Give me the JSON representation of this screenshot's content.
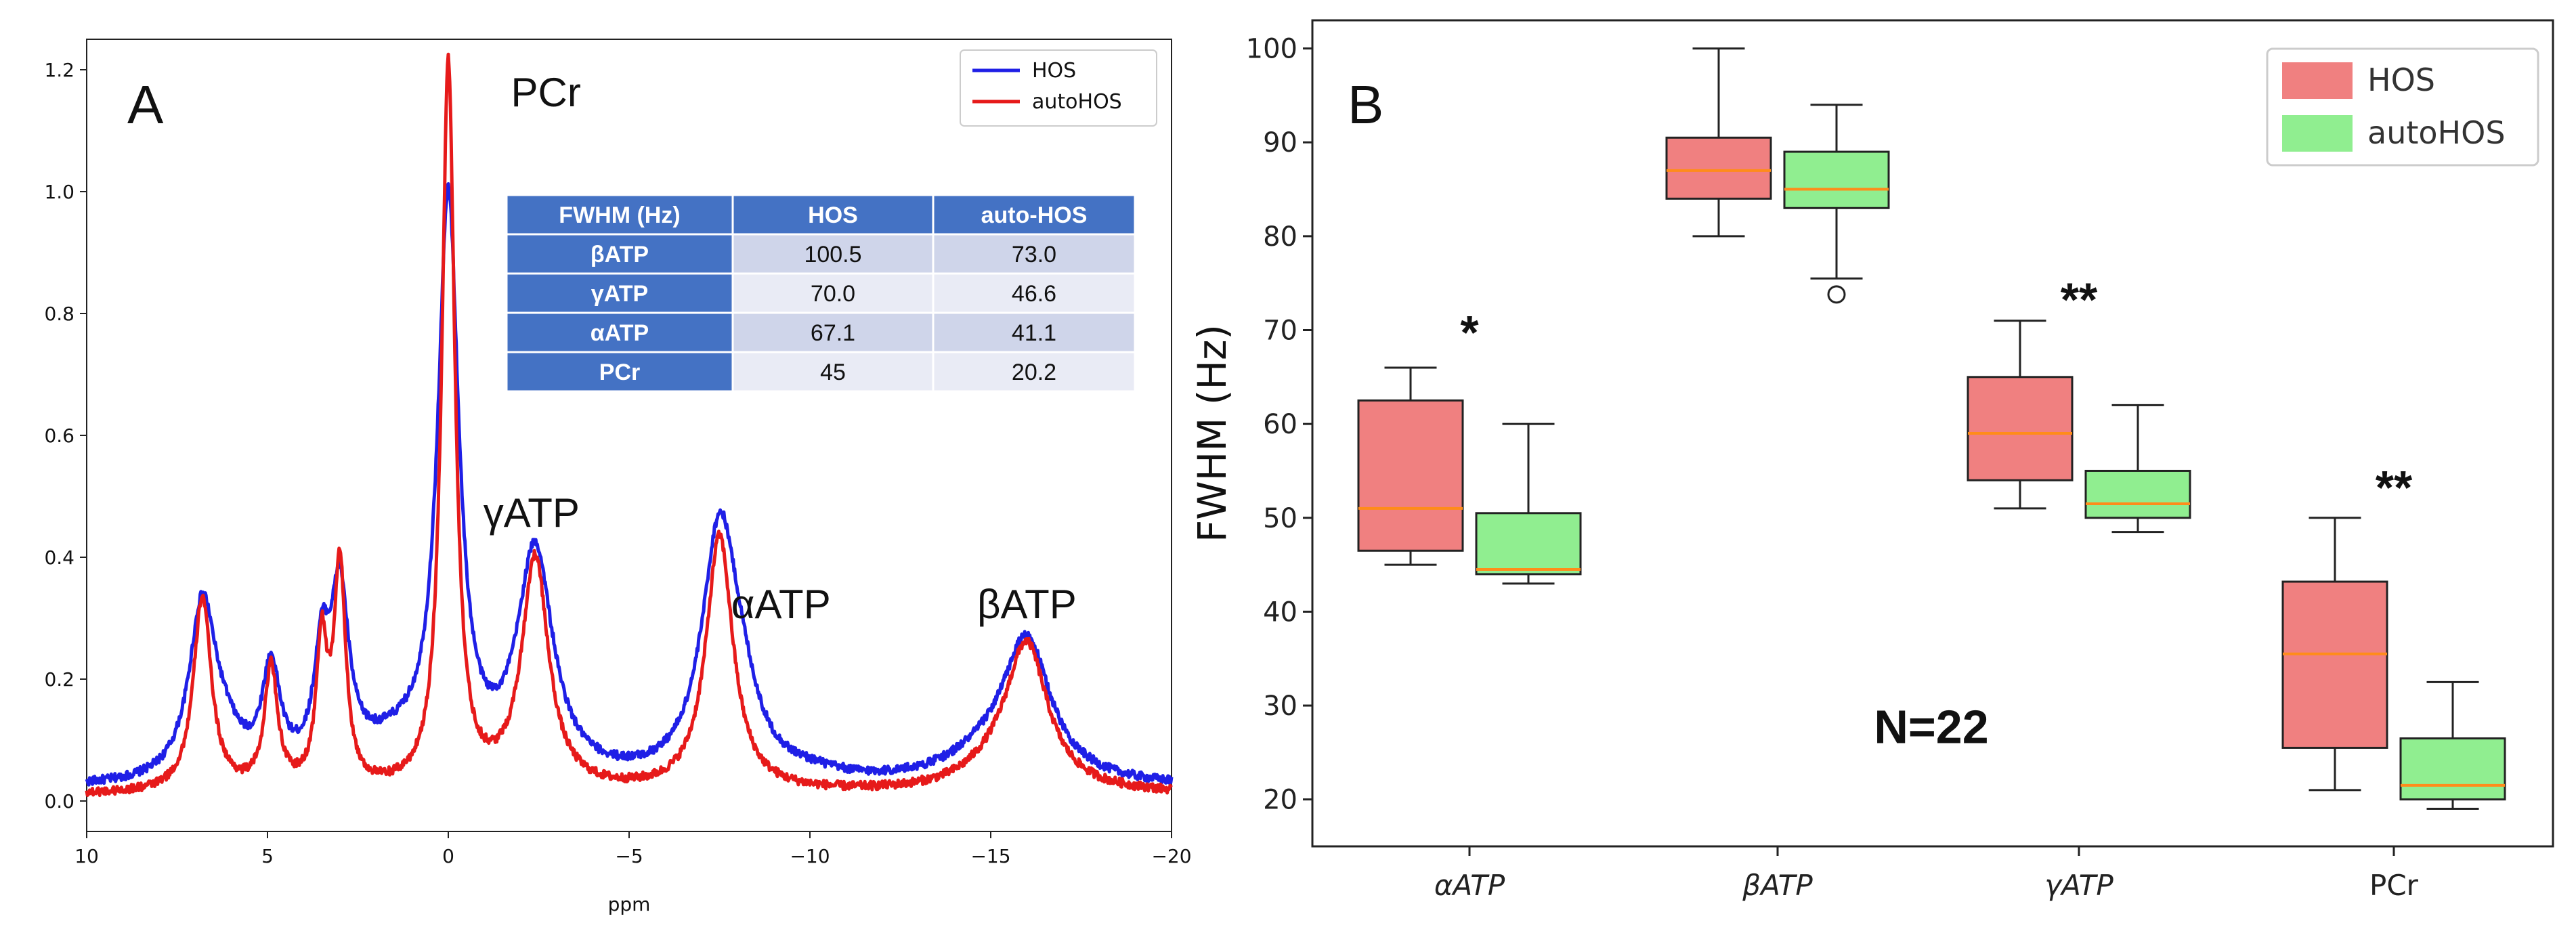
{
  "chart_data": [
    {
      "type": "line",
      "panel": "A",
      "xlabel": "ppm",
      "ylabel": "",
      "xlim": [
        10,
        -20
      ],
      "ylim": [
        -0.05,
        1.25
      ],
      "x_ticks": [
        10,
        5,
        0,
        -5,
        -10,
        -15,
        -20
      ],
      "x_tick_labels": [
        "10",
        "5",
        "0",
        "−5",
        "−10",
        "−15",
        "−20"
      ],
      "y_ticks": [
        0.0,
        0.2,
        0.4,
        0.6,
        0.8,
        1.0,
        1.2
      ],
      "y_tick_labels": [
        "0.0",
        "0.2",
        "0.4",
        "0.6",
        "0.8",
        "1.0",
        "1.2"
      ],
      "legend": {
        "position": "top-right",
        "entries": [
          "HOS",
          "autoHOS"
        ]
      },
      "series": [
        {
          "name": "HOS",
          "color": "#1f1fe6",
          "baseline": 0.02,
          "peaks": [
            {
              "ppm": 6.8,
              "height": 0.28,
              "width": 0.45
            },
            {
              "ppm": 6.2,
              "height": 0.05,
              "width": 0.6
            },
            {
              "ppm": 4.9,
              "height": 0.17,
              "width": 0.3
            },
            {
              "ppm": 3.5,
              "height": 0.17,
              "width": 0.25
            },
            {
              "ppm": 3.0,
              "height": 0.28,
              "width": 0.3
            },
            {
              "ppm": 1.5,
              "height": 0.05,
              "width": 1.5
            },
            {
              "ppm": 0.0,
              "height": 0.93,
              "width": 0.35
            },
            {
              "ppm": -2.4,
              "height": 0.37,
              "width": 0.6
            },
            {
              "ppm": -7.5,
              "height": 0.4,
              "width": 0.6
            },
            {
              "ppm": -8.1,
              "height": 0.08,
              "width": 0.6
            },
            {
              "ppm": -10.0,
              "height": 0.01,
              "width": 1.0
            },
            {
              "ppm": -16.0,
              "height": 0.22,
              "width": 0.8
            },
            {
              "ppm": -15.0,
              "height": 0.04,
              "width": 1.5
            }
          ]
        },
        {
          "name": "autoHOS",
          "color": "#e61a1a",
          "baseline": 0.01,
          "peaks": [
            {
              "ppm": 6.8,
              "height": 0.32,
              "width": 0.3
            },
            {
              "ppm": 4.9,
              "height": 0.2,
              "width": 0.22
            },
            {
              "ppm": 3.5,
              "height": 0.23,
              "width": 0.18
            },
            {
              "ppm": 3.0,
              "height": 0.36,
              "width": 0.2
            },
            {
              "ppm": 0.0,
              "height": 1.19,
              "width": 0.22
            },
            {
              "ppm": -2.4,
              "height": 0.38,
              "width": 0.45
            },
            {
              "ppm": -7.5,
              "height": 0.42,
              "width": 0.45
            },
            {
              "ppm": -16.0,
              "height": 0.23,
              "width": 0.7
            },
            {
              "ppm": -15.2,
              "height": 0.03,
              "width": 1.2
            }
          ]
        }
      ],
      "annotations": [
        {
          "text": "PCr",
          "ppm": -2.7,
          "y": 1.14
        },
        {
          "text": "γATP",
          "ppm": -2.3,
          "y": 0.45
        },
        {
          "text": "αATP",
          "ppm": -9.2,
          "y": 0.3
        },
        {
          "text": "βATP",
          "ppm": -16.0,
          "y": 0.3
        }
      ],
      "table": {
        "headers": [
          "FWHM (Hz)",
          "HOS",
          "auto-HOS"
        ],
        "rows": [
          [
            "βATP",
            "100.5",
            "73.0"
          ],
          [
            "γATP",
            "70.0",
            "46.6"
          ],
          [
            "αATP",
            "67.1",
            "41.1"
          ],
          [
            "PCr",
            "45",
            "20.2"
          ]
        ]
      }
    },
    {
      "type": "boxplot",
      "panel": "B",
      "ylabel": "FWHM (Hz)",
      "xlabel": "",
      "ylim": [
        15,
        103
      ],
      "y_ticks": [
        20,
        30,
        40,
        50,
        60,
        70,
        80,
        90,
        100
      ],
      "categories": [
        "αATP",
        "βATP",
        "γATP",
        "PCr"
      ],
      "legend": {
        "position": "top-right",
        "entries": [
          "HOS",
          "autoHOS"
        ]
      },
      "series": [
        {
          "name": "HOS",
          "color": "#f08080",
          "boxes": [
            {
              "min": 45,
              "q1": 46.5,
              "median": 51,
              "q3": 62.5,
              "max": 66,
              "outliers": []
            },
            {
              "min": 80,
              "q1": 84,
              "median": 87,
              "q3": 90.5,
              "max": 100,
              "outliers": []
            },
            {
              "min": 51,
              "q1": 54,
              "median": 59,
              "q3": 65,
              "max": 71,
              "outliers": []
            },
            {
              "min": 21,
              "q1": 25.5,
              "median": 35.5,
              "q3": 43.2,
              "max": 50,
              "outliers": []
            }
          ]
        },
        {
          "name": "autoHOS",
          "color": "#90ee90",
          "boxes": [
            {
              "min": 43,
              "q1": 44,
              "median": 44.5,
              "q3": 50.5,
              "max": 60,
              "outliers": []
            },
            {
              "min": 75.5,
              "q1": 83,
              "median": 85,
              "q3": 89,
              "max": 94,
              "outliers": [
                73.8
              ]
            },
            {
              "min": 48.5,
              "q1": 50,
              "median": 51.5,
              "q3": 55,
              "max": 62,
              "outliers": []
            },
            {
              "min": 19,
              "q1": 20,
              "median": 21.5,
              "q3": 26.5,
              "max": 32.5,
              "outliers": []
            }
          ]
        }
      ],
      "significance": [
        {
          "category": "αATP",
          "text": "*",
          "y": 68
        },
        {
          "category": "γATP",
          "text": "**",
          "y": 71.5
        },
        {
          "category": "PCr",
          "text": "**",
          "y": 51.5
        }
      ],
      "annotation": {
        "text": "N=22",
        "category_position": 2.5,
        "y": 26
      }
    }
  ]
}
